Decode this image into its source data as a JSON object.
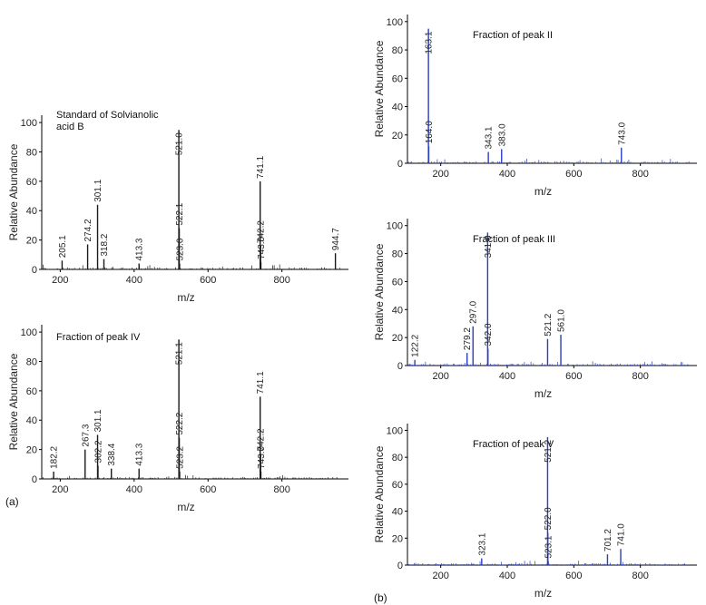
{
  "panel_labels": {
    "a": "(a)",
    "b": "(b)"
  },
  "chart_data": [
    {
      "id": "a1",
      "type": "bar",
      "title_lines": [
        "Standard of Solvianolic",
        "acid B"
      ],
      "xlabel": "m/z",
      "ylabel": "Relative Abundance",
      "xlim": [
        150,
        980
      ],
      "ylim": [
        0,
        105
      ],
      "xticks": [
        200,
        400,
        600,
        800
      ],
      "yticks": [
        0,
        20,
        40,
        60,
        80,
        100
      ],
      "color": "#1a1a1a",
      "peaks": [
        {
          "mz": 205.1,
          "value": 6,
          "label": "205.1"
        },
        {
          "mz": 274.2,
          "value": 17,
          "label": "274.2"
        },
        {
          "mz": 301.1,
          "value": 44,
          "label": "301.1"
        },
        {
          "mz": 318.2,
          "value": 7,
          "label": "318.2"
        },
        {
          "mz": 413.3,
          "value": 4,
          "label": "413.3"
        },
        {
          "mz": 521.0,
          "value": 95,
          "label": "521.0"
        },
        {
          "mz": 522.1,
          "value": 28,
          "label": "522.1"
        },
        {
          "mz": 523.0,
          "value": 4,
          "label": "523.0"
        },
        {
          "mz": 741.1,
          "value": 60,
          "label": "741.1"
        },
        {
          "mz": 742.2,
          "value": 16,
          "label": "742.2"
        },
        {
          "mz": 743.0,
          "value": 5,
          "label": "743.0"
        },
        {
          "mz": 944.7,
          "value": 11,
          "label": "944.7"
        }
      ]
    },
    {
      "id": "a2",
      "type": "bar",
      "title_lines": [
        "Fraction of peak IV"
      ],
      "xlabel": "m/z",
      "ylabel": "Relative Abundance",
      "xlim": [
        150,
        980
      ],
      "ylim": [
        0,
        105
      ],
      "xticks": [
        200,
        400,
        600,
        800
      ],
      "yticks": [
        0,
        20,
        40,
        60,
        80,
        100
      ],
      "color": "#1a1a1a",
      "peaks": [
        {
          "mz": 182.2,
          "value": 5,
          "label": "182.2"
        },
        {
          "mz": 267.3,
          "value": 20,
          "label": "267.3"
        },
        {
          "mz": 301.1,
          "value": 30,
          "label": "301.1"
        },
        {
          "mz": 302.2,
          "value": 9,
          "label": "302.2"
        },
        {
          "mz": 338.4,
          "value": 7,
          "label": "338.4"
        },
        {
          "mz": 413.3,
          "value": 7,
          "label": "413.3"
        },
        {
          "mz": 521.1,
          "value": 95,
          "label": "521.1"
        },
        {
          "mz": 522.2,
          "value": 28,
          "label": "522.2"
        },
        {
          "mz": 523.2,
          "value": 5,
          "label": "523.2"
        },
        {
          "mz": 741.1,
          "value": 56,
          "label": "741.1"
        },
        {
          "mz": 742.2,
          "value": 17,
          "label": "742.2"
        },
        {
          "mz": 743.0,
          "value": 5,
          "label": "743.0"
        }
      ]
    },
    {
      "id": "b1",
      "type": "bar",
      "title_lines": [
        "Fraction of peak II"
      ],
      "xlabel": "m/z",
      "ylabel": "Relative Abundance",
      "xlim": [
        100,
        970
      ],
      "ylim": [
        0,
        105
      ],
      "xticks": [
        200,
        400,
        600,
        800
      ],
      "yticks": [
        0,
        20,
        40,
        60,
        80,
        100
      ],
      "color": "#2a3fbf",
      "peaks": [
        {
          "mz": 163.1,
          "value": 95,
          "label": "163.1"
        },
        {
          "mz": 164.0,
          "value": 12,
          "label": "164.0"
        },
        {
          "mz": 343.1,
          "value": 8,
          "label": "343.1"
        },
        {
          "mz": 383.0,
          "value": 10,
          "label": "383.0"
        },
        {
          "mz": 743.0,
          "value": 11,
          "label": "743.0"
        }
      ]
    },
    {
      "id": "b2",
      "type": "bar",
      "title_lines": [
        "Fraction of peak III"
      ],
      "xlabel": "m/z",
      "ylabel": "Relative Abundance",
      "xlim": [
        100,
        970
      ],
      "ylim": [
        0,
        105
      ],
      "xticks": [
        200,
        400,
        600,
        800
      ],
      "yticks": [
        0,
        20,
        40,
        60,
        80,
        100
      ],
      "color": "#2a3fbf",
      "peaks": [
        {
          "mz": 122.2,
          "value": 4,
          "label": "122.2"
        },
        {
          "mz": 279.2,
          "value": 9,
          "label": "279.2"
        },
        {
          "mz": 297.0,
          "value": 28,
          "label": "297.0"
        },
        {
          "mz": 341.0,
          "value": 95,
          "label": "341.0"
        },
        {
          "mz": 342.0,
          "value": 12,
          "label": "342.0"
        },
        {
          "mz": 521.2,
          "value": 19,
          "label": "521.2"
        },
        {
          "mz": 561.0,
          "value": 22,
          "label": "561.0"
        }
      ]
    },
    {
      "id": "b3",
      "type": "bar",
      "title_lines": [
        "Fraction of peak V"
      ],
      "xlabel": "m/z",
      "ylabel": "Relative Abundance",
      "xlim": [
        100,
        970
      ],
      "ylim": [
        0,
        105
      ],
      "xticks": [
        200,
        400,
        600,
        800
      ],
      "yticks": [
        0,
        20,
        40,
        60,
        80,
        100
      ],
      "color": "#2a3fbf",
      "peaks": [
        {
          "mz": 323.1,
          "value": 5,
          "label": "323.1"
        },
        {
          "mz": 521.2,
          "value": 95,
          "label": "521.2"
        },
        {
          "mz": 522.0,
          "value": 24,
          "label": "522.0"
        },
        {
          "mz": 523.1,
          "value": 3,
          "label": "523.1"
        },
        {
          "mz": 701.2,
          "value": 8,
          "label": "701.2"
        },
        {
          "mz": 741.0,
          "value": 12,
          "label": "741.0"
        }
      ]
    }
  ]
}
